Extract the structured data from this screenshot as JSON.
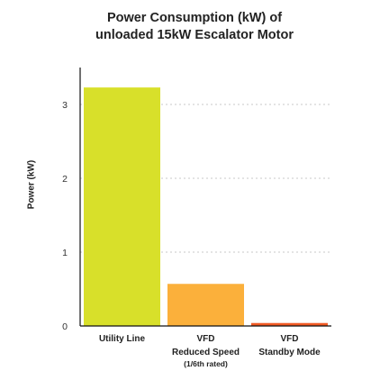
{
  "chart_data": {
    "type": "bar",
    "title_lines": [
      "Power Consumption (kW) of",
      "unloaded 15kW Escalator Motor"
    ],
    "ylabel": "Power (kW)",
    "xlabel": "",
    "ylim": [
      0,
      3.5
    ],
    "yticks": [
      0,
      1,
      2,
      3
    ],
    "grid": true,
    "categories": [
      {
        "lines": [
          "Utility Line"
        ],
        "sub": ""
      },
      {
        "lines": [
          "VFD",
          "Reduced Speed"
        ],
        "sub": "(1/6th rated)"
      },
      {
        "lines": [
          "VFD",
          "Standby Mode"
        ],
        "sub": ""
      }
    ],
    "values": [
      3.23,
      0.57,
      0.04
    ],
    "colors": [
      "#d8e02a",
      "#fbb03b",
      "#f15a24"
    ]
  }
}
